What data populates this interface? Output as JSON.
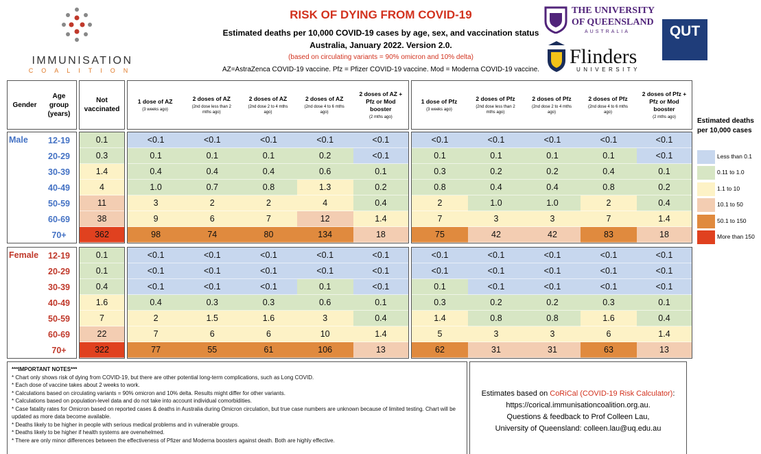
{
  "header": {
    "title": "RISK OF DYING FROM COVID-19",
    "subtitle": "Estimated deaths per 10,000 COVID-19 cases by age, sex, and vaccination status",
    "date_line": "Australia, January 2022. Version 2.0.",
    "variant_note": "(based on circulating variants = 90% omicron and 10% delta)",
    "abbreviations": "AZ=AstraZenca COVID-19 vaccine.  Pfz = Pfizer COVID-19 vaccine. Mod = Moderna COVID-19 vaccine."
  },
  "logos": {
    "immunisation": "IMMUNISATION",
    "coalition": "COALITION",
    "uq_line1": "THE UNIVERSITY",
    "uq_line2": "OF QUEENSLAND",
    "uq_line3": "AUSTRALIA",
    "flinders": "Flinders",
    "flinders_sub": "UNIVERSITY",
    "qut": "QUT"
  },
  "table": {
    "columns": {
      "gender": "Gender",
      "age": "Age group (years)",
      "unvaccinated": "Not vaccinated"
    },
    "az_columns": [
      {
        "label": "1 dose of AZ",
        "sub": "(3 weeks ago)"
      },
      {
        "label": "2 doses of AZ",
        "sub": "(2nd dose less than 2 mths ago)"
      },
      {
        "label": "2 doses of AZ",
        "sub": "(2nd dose 2 to 4 mths ago)"
      },
      {
        "label": "2 doses of AZ",
        "sub": "(2nd dose 4 to 6 mths ago)"
      },
      {
        "label": "2 doses of AZ + Pfz or Mod booster",
        "sub": "(2 mths ago)"
      }
    ],
    "pfz_columns": [
      {
        "label": "1 dose of Pfz",
        "sub": "(3 weeks ago)"
      },
      {
        "label": "2 doses of Pfz",
        "sub": "(2nd dose less than 2 mths ago)"
      },
      {
        "label": "2 doses of Pfz",
        "sub": "(2nd dose 2 to 4 mths ago)"
      },
      {
        "label": "2 doses of Pfz",
        "sub": "(2nd dose 4 to 6 mths ago)"
      },
      {
        "label": "2 doses of Pfz + Pfz or Mod booster",
        "sub": "(2 mths ago)"
      }
    ],
    "groups": [
      {
        "gender": "Male",
        "color": "#4472c4",
        "rows": [
          {
            "age": "12-19",
            "values": [
              "0.1",
              "<0.1",
              "<0.1",
              "<0.1",
              "<0.1",
              "<0.1",
              "<0.1",
              "<0.1",
              "<0.1",
              "<0.1",
              "<0.1"
            ]
          },
          {
            "age": "20-29",
            "values": [
              "0.3",
              "0.1",
              "0.1",
              "0.1",
              "0.2",
              "<0.1",
              "0.1",
              "0.1",
              "0.1",
              "0.1",
              "<0.1"
            ]
          },
          {
            "age": "30-39",
            "values": [
              "1.4",
              "0.4",
              "0.4",
              "0.4",
              "0.6",
              "0.1",
              "0.3",
              "0.2",
              "0.2",
              "0.4",
              "0.1"
            ]
          },
          {
            "age": "40-49",
            "values": [
              "4",
              "1.0",
              "0.7",
              "0.8",
              "1.3",
              "0.2",
              "0.8",
              "0.4",
              "0.4",
              "0.8",
              "0.2"
            ]
          },
          {
            "age": "50-59",
            "values": [
              "11",
              "3",
              "2",
              "2",
              "4",
              "0.4",
              "2",
              "1.0",
              "1.0",
              "2",
              "0.4"
            ]
          },
          {
            "age": "60-69",
            "values": [
              "38",
              "9",
              "6",
              "7",
              "12",
              "1.4",
              "7",
              "3",
              "3",
              "7",
              "1.4"
            ]
          },
          {
            "age": "70+",
            "values": [
              "362",
              "98",
              "74",
              "80",
              "134",
              "18",
              "75",
              "42",
              "42",
              "83",
              "18"
            ]
          }
        ]
      },
      {
        "gender": "Female",
        "color": "#c0392b",
        "rows": [
          {
            "age": "12-19",
            "values": [
              "0.1",
              "<0.1",
              "<0.1",
              "<0.1",
              "<0.1",
              "<0.1",
              "<0.1",
              "<0.1",
              "<0.1",
              "<0.1",
              "<0.1"
            ]
          },
          {
            "age": "20-29",
            "values": [
              "0.1",
              "<0.1",
              "<0.1",
              "<0.1",
              "<0.1",
              "<0.1",
              "<0.1",
              "<0.1",
              "<0.1",
              "<0.1",
              "<0.1"
            ]
          },
          {
            "age": "30-39",
            "values": [
              "0.4",
              "<0.1",
              "<0.1",
              "<0.1",
              "0.1",
              "<0.1",
              "0.1",
              "<0.1",
              "<0.1",
              "<0.1",
              "<0.1"
            ]
          },
          {
            "age": "40-49",
            "values": [
              "1.6",
              "0.4",
              "0.3",
              "0.3",
              "0.6",
              "0.1",
              "0.3",
              "0.2",
              "0.2",
              "0.3",
              "0.1"
            ]
          },
          {
            "age": "50-59",
            "values": [
              "7",
              "2",
              "1.5",
              "1.6",
              "3",
              "0.4",
              "1.4",
              "0.8",
              "0.8",
              "1.6",
              "0.4"
            ]
          },
          {
            "age": "60-69",
            "values": [
              "22",
              "7",
              "6",
              "6",
              "10",
              "1.4",
              "5",
              "3",
              "3",
              "6",
              "1.4"
            ]
          },
          {
            "age": "70+",
            "values": [
              "322",
              "77",
              "55",
              "61",
              "106",
              "13",
              "62",
              "31",
              "31",
              "63",
              "13"
            ]
          }
        ]
      }
    ]
  },
  "legend": {
    "title": "Estimated deaths per 10,000 cases",
    "items": [
      {
        "label": "Less than 0.1",
        "color": "#c7d7ee"
      },
      {
        "label": "0.11 to 1.0",
        "color": "#d7e6c4"
      },
      {
        "label": "1.1 to 10",
        "color": "#fdf2c6"
      },
      {
        "label": "10.1 to 50",
        "color": "#f3cdb2"
      },
      {
        "label": "50.1 to 150",
        "color": "#e08a3e"
      },
      {
        "label": "More than 150",
        "color": "#e0411f"
      }
    ]
  },
  "notes": {
    "heading": "***IMPORTANT NOTES***",
    "items": [
      "* Chart only shows risk of dying from COVID-19, but there are other potential long-term complications, such as Long COVID.",
      "* Each dose of vaccine takes about 2 weeks to work.",
      "* Calculations based on circulating variants = 90% omicron and 10% delta. Results might differ for other variants.",
      "* Calculations based on population-level data and do not take into account individual comorbidities.",
      "* Case fatality rates for Omicron based on reported cases & deaths in Australia during Omicron circulation, but true case numbers are unknown because of limited testing.  Chart will be updated as more data become available.",
      "* Deaths likely to be higher in people with serious medical problems and in vulnerable groups.",
      "* Deaths likely to be higher if health systems are overwhelmed.",
      "* There are only minor differences between the effectiveness of Pfizer and Moderna boosters against death. Both are highly effective."
    ]
  },
  "contact": {
    "prefix": "Estimates based on ",
    "link": "CoRiCal (COVID-19 Risk Calculator)",
    "suffix": ":",
    "lines": [
      "https://corical.immunisationcoalition.org.au.",
      "Questions & feedback to Prof Colleen Lau,",
      "University of Queensland: colleen.lau@uq.edu.au"
    ]
  }
}
